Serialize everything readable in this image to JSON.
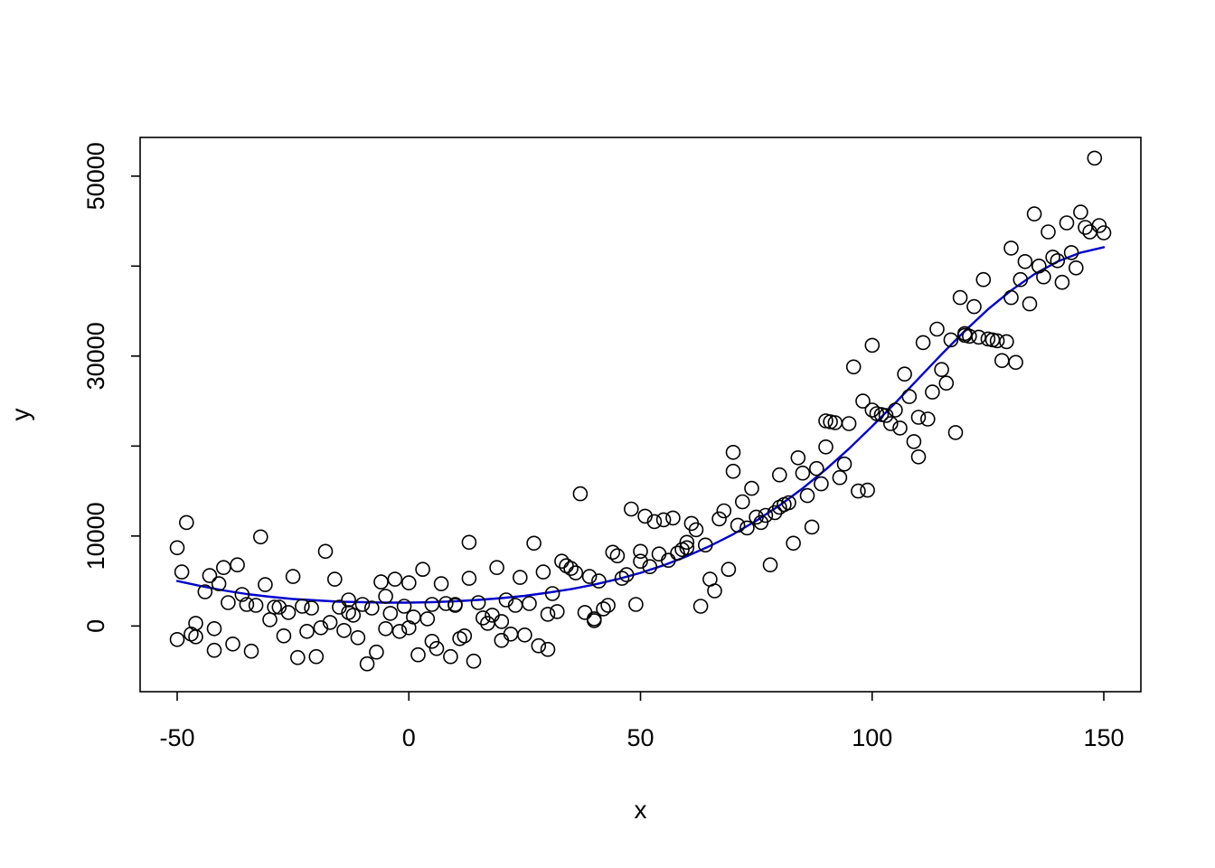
{
  "chart_data": {
    "type": "scatter",
    "title": "",
    "xlabel": "x",
    "ylabel": "y",
    "xlim": [
      -58,
      158
    ],
    "ylim": [
      -7300,
      54300
    ],
    "xticks": [
      -50,
      0,
      50,
      100,
      150
    ],
    "xtick_labels": [
      "-50",
      "0",
      "50",
      "100",
      "150"
    ],
    "yticks": [
      0,
      10000,
      20000,
      30000,
      40000,
      50000
    ],
    "ytick_labels": [
      "0",
      "10000",
      "",
      "30000",
      "",
      "50000"
    ],
    "grid": false,
    "legend": "none",
    "point_color": "#000000",
    "curve_color": "#0000CD",
    "background_color": "#ffffff",
    "points": [
      [
        -50,
        8700
      ],
      [
        -50,
        -1500
      ],
      [
        -49,
        6000
      ],
      [
        -48,
        11500
      ],
      [
        -47,
        -900
      ],
      [
        -46,
        300
      ],
      [
        -46,
        -1200
      ],
      [
        -44,
        3800
      ],
      [
        -43,
        5600
      ],
      [
        -42,
        -300
      ],
      [
        -42,
        -2700
      ],
      [
        -41,
        4700
      ],
      [
        -40,
        6500
      ],
      [
        -39,
        2600
      ],
      [
        -38,
        -2000
      ],
      [
        -37,
        6800
      ],
      [
        -36,
        3500
      ],
      [
        -35,
        2400
      ],
      [
        -34,
        -2800
      ],
      [
        -33,
        2300
      ],
      [
        -32,
        9900
      ],
      [
        -31,
        4600
      ],
      [
        -30,
        700
      ],
      [
        -29,
        2100
      ],
      [
        -28,
        2100
      ],
      [
        -27,
        -1100
      ],
      [
        -26,
        1500
      ],
      [
        -25,
        5500
      ],
      [
        -24,
        -3500
      ],
      [
        -23,
        2200
      ],
      [
        -22,
        -600
      ],
      [
        -21,
        2000
      ],
      [
        -20,
        -3400
      ],
      [
        -19,
        -200
      ],
      [
        -18,
        8300
      ],
      [
        -17,
        400
      ],
      [
        -16,
        5200
      ],
      [
        -15,
        2100
      ],
      [
        -14,
        -500
      ],
      [
        -13,
        1500
      ],
      [
        -13,
        2900
      ],
      [
        -12,
        1200
      ],
      [
        -11,
        -1300
      ],
      [
        -10,
        2400
      ],
      [
        -9,
        -4200
      ],
      [
        -8,
        2000
      ],
      [
        -7,
        -2900
      ],
      [
        -6,
        4900
      ],
      [
        -5,
        -300
      ],
      [
        -5,
        3300
      ],
      [
        -4,
        1400
      ],
      [
        -3,
        5200
      ],
      [
        -2,
        -600
      ],
      [
        -1,
        2200
      ],
      [
        0,
        4800
      ],
      [
        0,
        -200
      ],
      [
        1,
        1000
      ],
      [
        2,
        -3200
      ],
      [
        3,
        6300
      ],
      [
        4,
        800
      ],
      [
        5,
        -1700
      ],
      [
        5,
        2400
      ],
      [
        6,
        -2500
      ],
      [
        7,
        4700
      ],
      [
        8,
        2500
      ],
      [
        9,
        -3400
      ],
      [
        10,
        2400
      ],
      [
        10,
        2300
      ],
      [
        11,
        -1400
      ],
      [
        12,
        -1100
      ],
      [
        13,
        9300
      ],
      [
        13,
        5300
      ],
      [
        14,
        -3900
      ],
      [
        15,
        2600
      ],
      [
        16,
        900
      ],
      [
        17,
        300
      ],
      [
        18,
        1200
      ],
      [
        19,
        6500
      ],
      [
        20,
        500
      ],
      [
        20,
        -1600
      ],
      [
        21,
        2900
      ],
      [
        22,
        -900
      ],
      [
        23,
        2300
      ],
      [
        24,
        5400
      ],
      [
        25,
        -1000
      ],
      [
        26,
        2500
      ],
      [
        27,
        9200
      ],
      [
        28,
        -2200
      ],
      [
        29,
        6000
      ],
      [
        30,
        -2600
      ],
      [
        30,
        1300
      ],
      [
        31,
        3600
      ],
      [
        32,
        1600
      ],
      [
        33,
        7200
      ],
      [
        34,
        6700
      ],
      [
        35,
        6400
      ],
      [
        36,
        5900
      ],
      [
        37,
        14700
      ],
      [
        38,
        1500
      ],
      [
        39,
        5500
      ],
      [
        40,
        800
      ],
      [
        40,
        600
      ],
      [
        41,
        5000
      ],
      [
        42,
        1900
      ],
      [
        43,
        2300
      ],
      [
        44,
        8200
      ],
      [
        45,
        7800
      ],
      [
        46,
        5300
      ],
      [
        47,
        5700
      ],
      [
        48,
        13000
      ],
      [
        49,
        2400
      ],
      [
        50,
        8300
      ],
      [
        50,
        7200
      ],
      [
        51,
        12200
      ],
      [
        52,
        6600
      ],
      [
        53,
        11600
      ],
      [
        54,
        8000
      ],
      [
        55,
        11800
      ],
      [
        56,
        7300
      ],
      [
        57,
        12000
      ],
      [
        58,
        8100
      ],
      [
        59,
        8500
      ],
      [
        60,
        9300
      ],
      [
        60,
        8700
      ],
      [
        61,
        11400
      ],
      [
        62,
        10700
      ],
      [
        63,
        2200
      ],
      [
        64,
        9000
      ],
      [
        65,
        5200
      ],
      [
        66,
        3900
      ],
      [
        67,
        11900
      ],
      [
        68,
        12800
      ],
      [
        69,
        6300
      ],
      [
        70,
        19300
      ],
      [
        70,
        17200
      ],
      [
        71,
        11200
      ],
      [
        72,
        13800
      ],
      [
        73,
        10900
      ],
      [
        74,
        15300
      ],
      [
        75,
        12100
      ],
      [
        76,
        11500
      ],
      [
        77,
        12300
      ],
      [
        78,
        6800
      ],
      [
        79,
        12600
      ],
      [
        80,
        13200
      ],
      [
        80,
        16800
      ],
      [
        81,
        13500
      ],
      [
        82,
        13700
      ],
      [
        83,
        9200
      ],
      [
        84,
        18700
      ],
      [
        85,
        17000
      ],
      [
        86,
        14500
      ],
      [
        87,
        11000
      ],
      [
        88,
        17500
      ],
      [
        89,
        15800
      ],
      [
        90,
        19900
      ],
      [
        90,
        22800
      ],
      [
        91,
        22700
      ],
      [
        92,
        22600
      ],
      [
        93,
        16500
      ],
      [
        94,
        18000
      ],
      [
        95,
        22500
      ],
      [
        96,
        28800
      ],
      [
        97,
        15000
      ],
      [
        98,
        25000
      ],
      [
        99,
        15100
      ],
      [
        100,
        31200
      ],
      [
        100,
        24000
      ],
      [
        101,
        23600
      ],
      [
        102,
        23500
      ],
      [
        103,
        23400
      ],
      [
        104,
        22500
      ],
      [
        105,
        24000
      ],
      [
        106,
        22000
      ],
      [
        107,
        28000
      ],
      [
        108,
        25500
      ],
      [
        109,
        20500
      ],
      [
        110,
        23200
      ],
      [
        110,
        18800
      ],
      [
        111,
        31500
      ],
      [
        112,
        23000
      ],
      [
        113,
        26000
      ],
      [
        114,
        33000
      ],
      [
        115,
        28500
      ],
      [
        116,
        27000
      ],
      [
        117,
        31800
      ],
      [
        118,
        21500
      ],
      [
        119,
        36500
      ],
      [
        120,
        32500
      ],
      [
        120,
        32300
      ],
      [
        121,
        32200
      ],
      [
        122,
        35500
      ],
      [
        123,
        32100
      ],
      [
        124,
        38500
      ],
      [
        125,
        31900
      ],
      [
        126,
        31800
      ],
      [
        127,
        31700
      ],
      [
        128,
        29500
      ],
      [
        129,
        31600
      ],
      [
        130,
        42000
      ],
      [
        130,
        36500
      ],
      [
        131,
        29300
      ],
      [
        132,
        38500
      ],
      [
        133,
        40500
      ],
      [
        134,
        35800
      ],
      [
        135,
        45800
      ],
      [
        136,
        40000
      ],
      [
        137,
        38800
      ],
      [
        138,
        43800
      ],
      [
        139,
        41000
      ],
      [
        140,
        40600
      ],
      [
        141,
        38200
      ],
      [
        142,
        44800
      ],
      [
        143,
        41500
      ],
      [
        144,
        39800
      ],
      [
        145,
        46000
      ],
      [
        146,
        44300
      ],
      [
        147,
        43800
      ],
      [
        148,
        52000
      ],
      [
        149,
        44500
      ],
      [
        150,
        43700
      ]
    ],
    "curve": [
      [
        -50,
        5000
      ],
      [
        -45,
        4450
      ],
      [
        -40,
        3950
      ],
      [
        -35,
        3550
      ],
      [
        -30,
        3250
      ],
      [
        -25,
        3000
      ],
      [
        -20,
        2850
      ],
      [
        -15,
        2700
      ],
      [
        -10,
        2650
      ],
      [
        -5,
        2600
      ],
      [
        0,
        2600
      ],
      [
        5,
        2650
      ],
      [
        10,
        2750
      ],
      [
        15,
        2900
      ],
      [
        20,
        3100
      ],
      [
        25,
        3350
      ],
      [
        30,
        3700
      ],
      [
        35,
        4100
      ],
      [
        40,
        4600
      ],
      [
        45,
        5200
      ],
      [
        50,
        5900
      ],
      [
        55,
        6750
      ],
      [
        60,
        7750
      ],
      [
        65,
        8900
      ],
      [
        70,
        10200
      ],
      [
        75,
        11700
      ],
      [
        80,
        13400
      ],
      [
        85,
        15300
      ],
      [
        90,
        17400
      ],
      [
        95,
        19700
      ],
      [
        100,
        22200
      ],
      [
        105,
        24800
      ],
      [
        110,
        27500
      ],
      [
        115,
        30200
      ],
      [
        120,
        32800
      ],
      [
        125,
        35200
      ],
      [
        130,
        37300
      ],
      [
        135,
        39100
      ],
      [
        140,
        40500
      ],
      [
        145,
        41500
      ],
      [
        150,
        42100
      ]
    ]
  }
}
